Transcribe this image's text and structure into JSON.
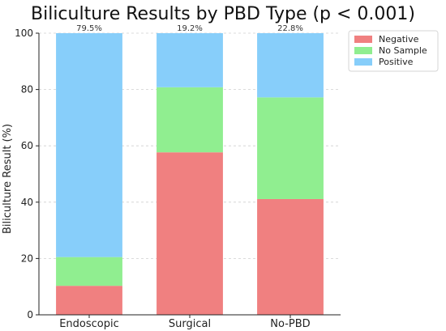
{
  "chart_data": {
    "type": "bar",
    "stacked": true,
    "title": "Biliculture Results by PBD Type (p < 0.001)",
    "xlabel": "",
    "ylabel": "Biliculture Result (%)",
    "ylim": [
      0,
      100
    ],
    "yticks": [
      0,
      20,
      40,
      60,
      80,
      100
    ],
    "grid": true,
    "legend_position": "top-right",
    "categories": [
      "Endoscopic",
      "Surgical",
      "No-PBD"
    ],
    "series": [
      {
        "name": "Negative",
        "color": "#f08080",
        "values": [
          10.3,
          57.7,
          41.1
        ]
      },
      {
        "name": "No Sample",
        "color": "#90ee90",
        "values": [
          10.2,
          23.1,
          36.1
        ]
      },
      {
        "name": "Positive",
        "color": "#87cefa",
        "values": [
          79.5,
          19.2,
          22.8
        ]
      }
    ],
    "annotations": [
      "79.5%",
      "19.2%",
      "22.8%"
    ]
  }
}
